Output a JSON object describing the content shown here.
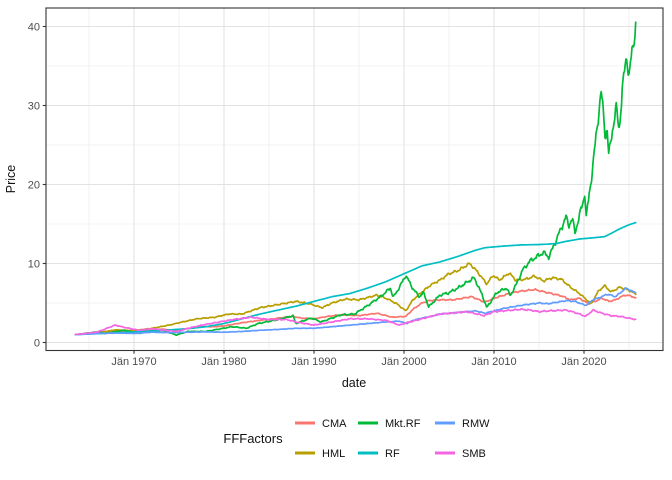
{
  "window": {
    "background": "#FFFFFF"
  },
  "theme": {
    "panel_border": "#333333",
    "tick_color": "#333333",
    "grid_major": "#E2E2E2",
    "grid_minor": "#EFEFEF",
    "tick_label_color": "#4D4D4D",
    "axis_title_color": "#111111"
  },
  "chart_data": {
    "type": "line",
    "title": "",
    "xlabel": "date",
    "ylabel": "Price",
    "legend_title": "FFFactors",
    "legend_position": "bottom",
    "grid": "on",
    "x_unit": "decimal_year",
    "xlim": [
      1960.2,
      2028.8
    ],
    "ylim": [
      -1,
      42.3
    ],
    "x_ticks": [
      {
        "label": "Jän 1970",
        "year": 1970
      },
      {
        "label": "Jän 1980",
        "year": 1980
      },
      {
        "label": "Jän 1990",
        "year": 1990
      },
      {
        "label": "Jän 2000",
        "year": 2000
      },
      {
        "label": "Jän 2010",
        "year": 2010
      },
      {
        "label": "Jän 2020",
        "year": 2020
      }
    ],
    "y_ticks": [
      {
        "label": "0",
        "value": 0
      },
      {
        "label": "10",
        "value": 10
      },
      {
        "label": "20",
        "value": 20
      },
      {
        "label": "30",
        "value": 30
      },
      {
        "label": "40",
        "value": 40
      }
    ],
    "series": [
      {
        "name": "CMA",
        "color": "#F8766D",
        "points": [
          [
            1963.5,
            1.0
          ],
          [
            1965,
            1.1
          ],
          [
            1967,
            1.3
          ],
          [
            1968.5,
            1.45
          ],
          [
            1970,
            1.4
          ],
          [
            1971.5,
            1.5
          ],
          [
            1973,
            1.7
          ],
          [
            1974.8,
            1.5
          ],
          [
            1977,
            2.0
          ],
          [
            1979,
            2.0
          ],
          [
            1980,
            2.1
          ],
          [
            1982,
            2.5
          ],
          [
            1984,
            2.8
          ],
          [
            1985.5,
            3.0
          ],
          [
            1987.7,
            3.3
          ],
          [
            1988.5,
            3.1
          ],
          [
            1990,
            3.0
          ],
          [
            1991.5,
            3.3
          ],
          [
            1993,
            3.5
          ],
          [
            1995,
            3.4
          ],
          [
            1997,
            3.7
          ],
          [
            1998.7,
            3.2
          ],
          [
            2000.2,
            3.3
          ],
          [
            2001,
            4.2
          ],
          [
            2002,
            5.0
          ],
          [
            2002.8,
            5.3
          ],
          [
            2004,
            5.4
          ],
          [
            2005.5,
            5.4
          ],
          [
            2007.5,
            5.8
          ],
          [
            2009,
            5.1
          ],
          [
            2010,
            5.6
          ],
          [
            2012,
            6.3
          ],
          [
            2013,
            6.5
          ],
          [
            2014.5,
            6.7
          ],
          [
            2016,
            6.3
          ],
          [
            2017.5,
            5.9
          ],
          [
            2018.5,
            5.4
          ],
          [
            2019.5,
            5.6
          ],
          [
            2020.5,
            4.9
          ],
          [
            2021.2,
            5.2
          ],
          [
            2022,
            5.6
          ],
          [
            2022.8,
            5.2
          ],
          [
            2023.5,
            5.4
          ],
          [
            2024.5,
            6.0
          ],
          [
            2025.2,
            5.9
          ],
          [
            2025.8,
            5.6
          ]
        ]
      },
      {
        "name": "HML",
        "color": "#B79F00",
        "points": [
          [
            1963.5,
            1.0
          ],
          [
            1965,
            1.15
          ],
          [
            1966,
            1.25
          ],
          [
            1968,
            1.6
          ],
          [
            1970,
            1.5
          ],
          [
            1972,
            1.8
          ],
          [
            1973.9,
            2.2
          ],
          [
            1975,
            2.5
          ],
          [
            1977,
            3.0
          ],
          [
            1979,
            3.2
          ],
          [
            1980.5,
            3.6
          ],
          [
            1982,
            3.6
          ],
          [
            1984,
            4.4
          ],
          [
            1986,
            4.8
          ],
          [
            1988,
            5.2
          ],
          [
            1989.5,
            4.9
          ],
          [
            1990.9,
            4.4
          ],
          [
            1992,
            5.0
          ],
          [
            1993.5,
            5.5
          ],
          [
            1995,
            5.4
          ],
          [
            1997,
            6.0
          ],
          [
            1998.2,
            5.5
          ],
          [
            1999.2,
            4.9
          ],
          [
            2000.2,
            4.0
          ],
          [
            2001,
            5.4
          ],
          [
            2002,
            6.4
          ],
          [
            2003,
            7.3
          ],
          [
            2004,
            7.9
          ],
          [
            2005,
            8.7
          ],
          [
            2006,
            9.1
          ],
          [
            2007.3,
            10.0
          ],
          [
            2008.2,
            8.9
          ],
          [
            2009.2,
            7.4
          ],
          [
            2009.9,
            8.5
          ],
          [
            2010.6,
            7.9
          ],
          [
            2011.7,
            8.8
          ],
          [
            2012.4,
            7.9
          ],
          [
            2013.5,
            8.0
          ],
          [
            2014.5,
            8.4
          ],
          [
            2015.5,
            7.8
          ],
          [
            2016.5,
            8.2
          ],
          [
            2017.5,
            8.0
          ],
          [
            2018.5,
            7.0
          ],
          [
            2019.5,
            6.2
          ],
          [
            2020.2,
            5.5
          ],
          [
            2020.8,
            4.9
          ],
          [
            2021.6,
            6.5
          ],
          [
            2022.3,
            7.2
          ],
          [
            2023,
            6.4
          ],
          [
            2024,
            7.0
          ],
          [
            2025,
            6.6
          ],
          [
            2025.8,
            6.1
          ]
        ]
      },
      {
        "name": "Mkt.RF",
        "color": "#00BA38",
        "points": [
          [
            1963.5,
            1.0
          ],
          [
            1965.9,
            1.35
          ],
          [
            1966.8,
            1.15
          ],
          [
            1968.9,
            1.55
          ],
          [
            1970.5,
            1.15
          ],
          [
            1972.9,
            1.65
          ],
          [
            1974.7,
            0.95
          ],
          [
            1976,
            1.4
          ],
          [
            1978,
            1.4
          ],
          [
            1980.9,
            2.0
          ],
          [
            1982.5,
            1.8
          ],
          [
            1983.8,
            2.4
          ],
          [
            1986,
            2.9
          ],
          [
            1987.7,
            3.4
          ],
          [
            1987.95,
            2.4
          ],
          [
            1989.7,
            3.1
          ],
          [
            1990.8,
            2.6
          ],
          [
            1993,
            3.5
          ],
          [
            1994.5,
            3.6
          ],
          [
            1996,
            4.7
          ],
          [
            1997.5,
            5.9
          ],
          [
            1998.5,
            6.9
          ],
          [
            1998.8,
            5.7
          ],
          [
            1999.5,
            7.0
          ],
          [
            2000.2,
            8.5
          ],
          [
            2001,
            6.8
          ],
          [
            2001.7,
            5.8
          ],
          [
            2002.2,
            6.3
          ],
          [
            2002.75,
            4.5
          ],
          [
            2004,
            6.0
          ],
          [
            2005,
            6.3
          ],
          [
            2006,
            6.9
          ],
          [
            2007.8,
            8.2
          ],
          [
            2008.7,
            6.0
          ],
          [
            2009.2,
            4.4
          ],
          [
            2010.3,
            6.3
          ],
          [
            2011.4,
            6.9
          ],
          [
            2011.8,
            5.9
          ],
          [
            2012.5,
            7.4
          ],
          [
            2013.2,
            9.2
          ],
          [
            2014,
            10.3
          ],
          [
            2015.5,
            11.4
          ],
          [
            2016.1,
            10.8
          ],
          [
            2017,
            13.2
          ],
          [
            2018.0,
            15.9
          ],
          [
            2018.3,
            14.8
          ],
          [
            2018.7,
            15.7
          ],
          [
            2019.0,
            13.9
          ],
          [
            2019.9,
            17.8
          ],
          [
            2020.1,
            19.0
          ],
          [
            2020.25,
            15.8
          ],
          [
            2020.9,
            21.5
          ],
          [
            2021.9,
            31.8
          ],
          [
            2022.2,
            28.5
          ],
          [
            2022.4,
            25.8
          ],
          [
            2022.55,
            27.5
          ],
          [
            2022.75,
            23.6
          ],
          [
            2023.1,
            26.5
          ],
          [
            2023.6,
            29.7
          ],
          [
            2023.9,
            27.0
          ],
          [
            2024.4,
            33.5
          ],
          [
            2024.75,
            36.5
          ],
          [
            2025.0,
            33.4
          ],
          [
            2025.3,
            36.5
          ],
          [
            2025.8,
            40.5
          ]
        ]
      },
      {
        "name": "RF",
        "color": "#00BFC4",
        "points": [
          [
            1963.5,
            1.0
          ],
          [
            1966,
            1.12
          ],
          [
            1968,
            1.22
          ],
          [
            1970,
            1.33
          ],
          [
            1972,
            1.45
          ],
          [
            1974,
            1.6
          ],
          [
            1976,
            1.75
          ],
          [
            1978,
            2.0
          ],
          [
            1980,
            2.4
          ],
          [
            1982,
            3.0
          ],
          [
            1984,
            3.6
          ],
          [
            1986,
            4.1
          ],
          [
            1988,
            4.6
          ],
          [
            1990,
            5.2
          ],
          [
            1992,
            5.8
          ],
          [
            1994,
            6.2
          ],
          [
            1996,
            6.9
          ],
          [
            1998,
            7.7
          ],
          [
            2000,
            8.7
          ],
          [
            2002,
            9.7
          ],
          [
            2004,
            10.2
          ],
          [
            2006,
            10.9
          ],
          [
            2008,
            11.7
          ],
          [
            2009,
            12.0
          ],
          [
            2011,
            12.2
          ],
          [
            2013,
            12.35
          ],
          [
            2015,
            12.4
          ],
          [
            2016,
            12.45
          ],
          [
            2017,
            12.55
          ],
          [
            2018,
            12.8
          ],
          [
            2019.5,
            13.1
          ],
          [
            2021,
            13.25
          ],
          [
            2022.3,
            13.4
          ],
          [
            2023,
            13.8
          ],
          [
            2024,
            14.4
          ],
          [
            2025,
            14.9
          ],
          [
            2025.8,
            15.2
          ]
        ]
      },
      {
        "name": "RMW",
        "color": "#619CFF",
        "points": [
          [
            1963.5,
            1.0
          ],
          [
            1966,
            1.15
          ],
          [
            1968,
            1.2
          ],
          [
            1970,
            1.15
          ],
          [
            1972,
            1.3
          ],
          [
            1974,
            1.25
          ],
          [
            1976,
            1.3
          ],
          [
            1978,
            1.35
          ],
          [
            1980,
            1.3
          ],
          [
            1982,
            1.4
          ],
          [
            1984,
            1.55
          ],
          [
            1986,
            1.65
          ],
          [
            1988,
            1.8
          ],
          [
            1990,
            1.8
          ],
          [
            1992,
            2.0
          ],
          [
            1994,
            2.2
          ],
          [
            1996,
            2.4
          ],
          [
            1998,
            2.6
          ],
          [
            1999.5,
            2.7
          ],
          [
            2000.3,
            2.4
          ],
          [
            2001,
            2.8
          ],
          [
            2002,
            3.1
          ],
          [
            2003,
            3.3
          ],
          [
            2004,
            3.6
          ],
          [
            2006,
            3.8
          ],
          [
            2008,
            4.0
          ],
          [
            2009,
            3.7
          ],
          [
            2011,
            4.3
          ],
          [
            2013,
            4.7
          ],
          [
            2015,
            5.0
          ],
          [
            2016,
            4.9
          ],
          [
            2017,
            5.1
          ],
          [
            2018,
            5.3
          ],
          [
            2019,
            5.2
          ],
          [
            2020.2,
            4.7
          ],
          [
            2021,
            5.4
          ],
          [
            2022,
            5.8
          ],
          [
            2022.5,
            6.1
          ],
          [
            2023,
            6.0
          ],
          [
            2023.5,
            5.8
          ],
          [
            2024.7,
            6.9
          ],
          [
            2025.3,
            6.5
          ],
          [
            2025.8,
            6.3
          ]
        ]
      },
      {
        "name": "SMB",
        "color": "#F564E3",
        "points": [
          [
            1963.5,
            1.0
          ],
          [
            1965,
            1.2
          ],
          [
            1966,
            1.35
          ],
          [
            1967.9,
            2.2
          ],
          [
            1969,
            1.9
          ],
          [
            1970.5,
            1.55
          ],
          [
            1972,
            1.75
          ],
          [
            1973,
            1.6
          ],
          [
            1974.8,
            1.4
          ],
          [
            1976,
            1.8
          ],
          [
            1978,
            2.3
          ],
          [
            1980,
            2.7
          ],
          [
            1981,
            2.9
          ],
          [
            1983,
            3.2
          ],
          [
            1985,
            2.9
          ],
          [
            1987,
            2.9
          ],
          [
            1988,
            2.6
          ],
          [
            1990,
            2.2
          ],
          [
            1992,
            2.6
          ],
          [
            1994,
            3.0
          ],
          [
            1996,
            3.0
          ],
          [
            1998,
            2.8
          ],
          [
            1999.5,
            2.2
          ],
          [
            2000.3,
            2.5
          ],
          [
            2001,
            2.7
          ],
          [
            2002,
            3.0
          ],
          [
            2004,
            3.6
          ],
          [
            2006,
            3.8
          ],
          [
            2007,
            3.9
          ],
          [
            2008.9,
            3.4
          ],
          [
            2010,
            3.9
          ],
          [
            2011,
            4.0
          ],
          [
            2013,
            4.2
          ],
          [
            2014,
            4.1
          ],
          [
            2015,
            3.9
          ],
          [
            2016,
            4.0
          ],
          [
            2018,
            4.1
          ],
          [
            2019,
            3.8
          ],
          [
            2020.2,
            3.3
          ],
          [
            2021,
            4.1
          ],
          [
            2022,
            3.7
          ],
          [
            2023,
            3.4
          ],
          [
            2024,
            3.3
          ],
          [
            2025.8,
            2.9
          ]
        ]
      }
    ]
  }
}
